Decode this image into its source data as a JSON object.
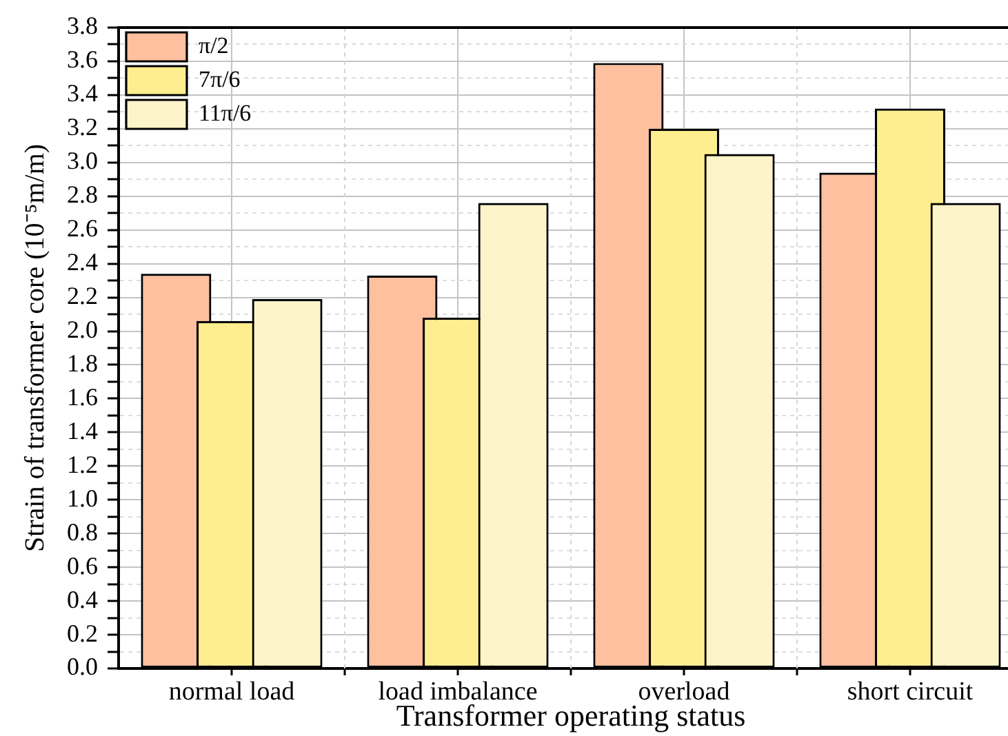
{
  "chart_data": {
    "type": "bar",
    "categories": [
      "normal load",
      "load imbalance",
      "overload",
      "short circuit"
    ],
    "xlabel": "Transformer operating status",
    "ylabel": "Strain of transformer core (10⁻⁵m/m)",
    "series": [
      {
        "name": "π/2",
        "color": "#ffc09f",
        "values": [
          2.34,
          2.33,
          3.59,
          2.94
        ]
      },
      {
        "name": "7π/6",
        "color": "#ffee8f",
        "values": [
          2.06,
          2.08,
          3.2,
          3.32
        ]
      },
      {
        "name": "11π/6",
        "color": "#fdf5c9",
        "values": [
          2.19,
          2.76,
          3.05,
          2.76
        ]
      }
    ],
    "ylim": [
      0,
      3.8
    ],
    "yticks": [
      {
        "value": 0,
        "label": "0.0"
      },
      {
        "value": 0.1,
        "label": null
      },
      0.2,
      {
        "value": 0.3,
        "label": null
      },
      0.4,
      {
        "value": 0.5,
        "label": null
      },
      0.6,
      {
        "value": 0.7,
        "label": null
      },
      0.8,
      {
        "value": 0.9,
        "label": null
      },
      {
        "value": 1,
        "label": "1.0"
      },
      {
        "value": 1.1,
        "label": null
      },
      1.2,
      {
        "value": 1.3,
        "label": null
      },
      1.4,
      {
        "value": 1.5,
        "label": null
      },
      1.6,
      {
        "value": 1.7,
        "label": null
      },
      1.8,
      {
        "value": 1.9,
        "label": null
      },
      {
        "value": 2,
        "label": "2.0"
      },
      {
        "value": 2.1,
        "label": null
      },
      2.2,
      {
        "value": 2.3,
        "label": null
      },
      2.4,
      {
        "value": 2.5,
        "label": null
      },
      2.6,
      {
        "value": 2.7,
        "label": null
      },
      2.8,
      {
        "value": 2.9,
        "label": null
      },
      {
        "value": 3,
        "label": "3.0"
      },
      {
        "value": 3.1,
        "label": null
      },
      3.2,
      {
        "value": 3.3,
        "label": null
      },
      3.4,
      {
        "value": 3.5,
        "label": null
      },
      3.6,
      {
        "value": 3.7,
        "label": null
      },
      3.8
    ],
    "grid": true,
    "legend": "top left"
  }
}
